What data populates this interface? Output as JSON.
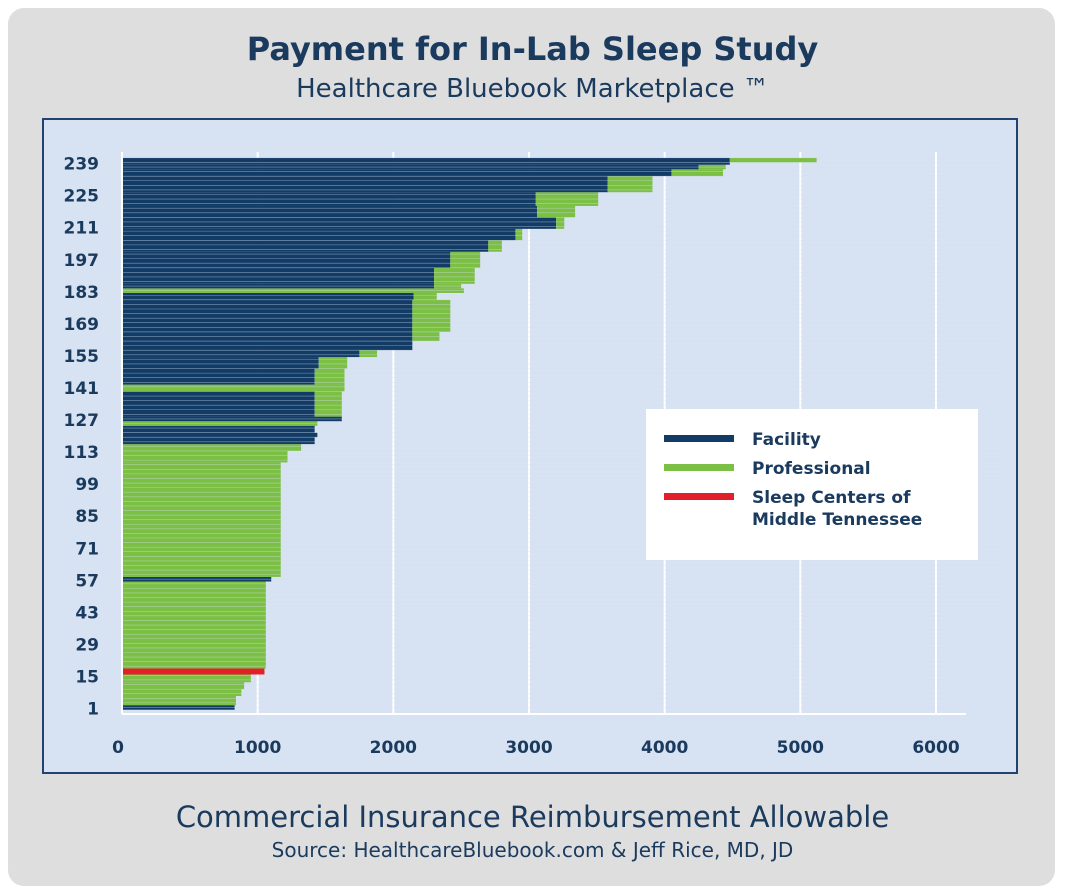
{
  "colors": {
    "facility": "#123b66",
    "professional": "#7cbf45",
    "highlight": "#e3202a",
    "text": "#1a3a5e",
    "plot_bg": "#d7e2f2",
    "grid": "#ffffff"
  },
  "header": {
    "title": "Payment for In-Lab Sleep Study",
    "subtitle": "Healthcare Bluebook Marketplace ™"
  },
  "footer": {
    "caption": "Commercial Insurance Reimbursement Allowable",
    "source": "Source: HealthcareBluebook.com & Jeff Rice, MD, JD"
  },
  "legend": {
    "items": [
      {
        "label": "Facility",
        "color": "#123b66"
      },
      {
        "label": "Professional",
        "color": "#7cbf45"
      },
      {
        "label": "Sleep Centers of\nMiddle Tennessee",
        "color": "#e3202a"
      }
    ]
  },
  "chart_data": {
    "type": "bar",
    "orientation": "horizontal",
    "stacked": true,
    "title": "Payment for In-Lab Sleep Study",
    "xlabel": "Commercial Insurance Reimbursement Allowable",
    "ylabel": "",
    "xlim": [
      0,
      6000
    ],
    "x_ticks": [
      "0",
      "1000",
      "2000",
      "3000",
      "4000",
      "5000",
      "6000"
    ],
    "x_tick_values": [
      0,
      1000,
      2000,
      3000,
      4000,
      5000,
      6000
    ],
    "ylim": [
      1,
      241
    ],
    "y_tick_labels": [
      "1",
      "15",
      "29",
      "43",
      "57",
      "71",
      "85",
      "99",
      "113",
      "127",
      "141",
      "155",
      "169",
      "183",
      "197",
      "211",
      "225",
      "239"
    ],
    "y_tick_values": [
      1,
      15,
      29,
      43,
      57,
      71,
      85,
      99,
      113,
      127,
      141,
      155,
      169,
      183,
      197,
      211,
      225,
      239
    ],
    "grid": true,
    "legend_position": "right",
    "highlight": {
      "label": "Sleep Centers of Middle Tennessee",
      "rank": 17,
      "total": 1050
    },
    "series": [
      {
        "name": "Facility",
        "key": "facility"
      },
      {
        "name": "Professional",
        "key": "professional"
      }
    ],
    "bands": [
      {
        "from": 1,
        "to": 2,
        "facility": 830,
        "professional": 0
      },
      {
        "from": 3,
        "to": 6,
        "facility": 0,
        "professional": 840
      },
      {
        "from": 7,
        "to": 9,
        "facility": 0,
        "professional": 880
      },
      {
        "from": 10,
        "to": 12,
        "facility": 0,
        "professional": 900
      },
      {
        "from": 13,
        "to": 16,
        "facility": 0,
        "professional": 950
      },
      {
        "from": 17,
        "to": 18,
        "facility": 0,
        "professional": 1050
      },
      {
        "from": 19,
        "to": 56,
        "facility": 0,
        "professional": 1060
      },
      {
        "from": 57,
        "to": 58,
        "facility": 1100,
        "professional": 0
      },
      {
        "from": 59,
        "to": 108,
        "facility": 0,
        "professional": 1170
      },
      {
        "from": 109,
        "to": 113,
        "facility": 0,
        "professional": 1220
      },
      {
        "from": 114,
        "to": 116,
        "facility": 0,
        "professional": 1320
      },
      {
        "from": 117,
        "to": 119,
        "facility": 1420,
        "professional": 0
      },
      {
        "from": 120,
        "to": 121,
        "facility": 1440,
        "professional": 0
      },
      {
        "from": 122,
        "to": 124,
        "facility": 1420,
        "professional": 0
      },
      {
        "from": 125,
        "to": 126,
        "facility": 0,
        "professional": 1440
      },
      {
        "from": 127,
        "to": 128,
        "facility": 1620,
        "professional": 0
      },
      {
        "from": 129,
        "to": 139,
        "facility": 1420,
        "professional": 200
      },
      {
        "from": 140,
        "to": 142,
        "facility": 0,
        "professional": 1640
      },
      {
        "from": 143,
        "to": 149,
        "facility": 1420,
        "professional": 220
      },
      {
        "from": 150,
        "to": 154,
        "facility": 1450,
        "professional": 210
      },
      {
        "from": 155,
        "to": 157,
        "facility": 1750,
        "professional": 130
      },
      {
        "from": 158,
        "to": 161,
        "facility": 2140,
        "professional": 0
      },
      {
        "from": 162,
        "to": 165,
        "facility": 2140,
        "professional": 200
      },
      {
        "from": 166,
        "to": 179,
        "facility": 2140,
        "professional": 280
      },
      {
        "from": 180,
        "to": 182,
        "facility": 2150,
        "professional": 170
      },
      {
        "from": 183,
        "to": 184,
        "facility": 0,
        "professional": 2520
      },
      {
        "from": 185,
        "to": 186,
        "facility": 2300,
        "professional": 200
      },
      {
        "from": 187,
        "to": 193,
        "facility": 2300,
        "professional": 300
      },
      {
        "from": 194,
        "to": 200,
        "facility": 2420,
        "professional": 220
      },
      {
        "from": 201,
        "to": 205,
        "facility": 2700,
        "professional": 100
      },
      {
        "from": 206,
        "to": 210,
        "facility": 2900,
        "professional": 50
      },
      {
        "from": 211,
        "to": 215,
        "facility": 3200,
        "professional": 60
      },
      {
        "from": 216,
        "to": 220,
        "facility": 3060,
        "professional": 280
      },
      {
        "from": 221,
        "to": 226,
        "facility": 3050,
        "professional": 460
      },
      {
        "from": 227,
        "to": 233,
        "facility": 3580,
        "professional": 330
      },
      {
        "from": 234,
        "to": 236,
        "facility": 4050,
        "professional": 380
      },
      {
        "from": 237,
        "to": 238,
        "facility": 4250,
        "professional": 200
      },
      {
        "from": 239,
        "to": 239,
        "facility": 4480,
        "professional": 0
      },
      {
        "from": 240,
        "to": 241,
        "facility": 4480,
        "professional": 640
      }
    ]
  }
}
